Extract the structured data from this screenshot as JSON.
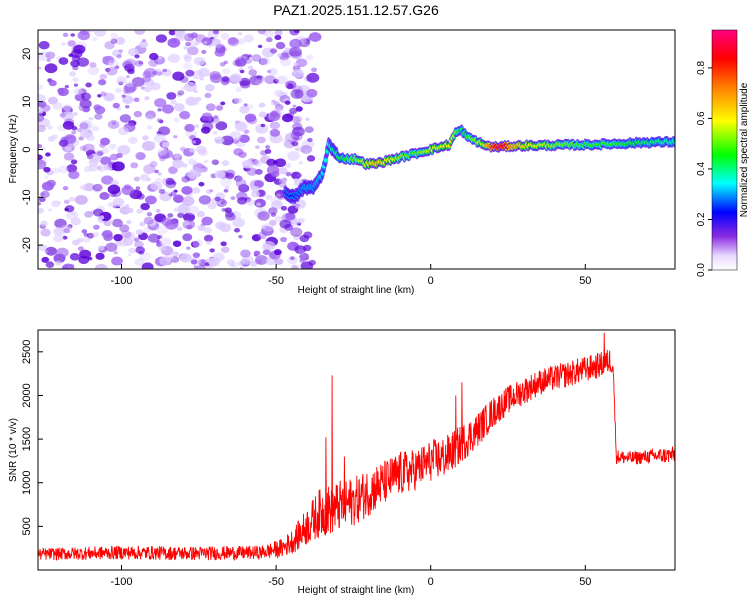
{
  "title": "PAZ1.2025.151.12.57.G26",
  "colors": {
    "noise": "#9b5cf0",
    "noise_dark": "#5a00d8",
    "snr_line": "#ff0000"
  },
  "chart_data": [
    {
      "type": "heatmap",
      "name": "spectrogram",
      "xlabel": "Height of straight line (km)",
      "ylabel": "Frequency (Hz)",
      "xlim": [
        -127,
        79
      ],
      "ylim": [
        -25,
        25
      ],
      "xticks": [
        -100,
        -50,
        0,
        50
      ],
      "xtick_labels": [
        "-100",
        "-50",
        "0",
        "50"
      ],
      "yticks": [
        -20,
        -10,
        0,
        10,
        20
      ],
      "ytick_labels": [
        "-20",
        "-10",
        "0",
        "10",
        "20"
      ],
      "noise_region_x": [
        -127,
        -45
      ],
      "ridge": {
        "x": [
          -47,
          -44,
          -41,
          -38,
          -35,
          -33,
          -30,
          -27,
          -24,
          -21,
          -18,
          -15,
          -12,
          -9,
          -6,
          -3,
          0,
          3,
          6,
          8,
          10,
          12,
          14,
          17,
          20,
          23,
          26,
          30,
          40,
          50,
          60,
          70,
          79
        ],
        "freq": [
          -9,
          -10,
          -8,
          -8,
          -5,
          1,
          -1.5,
          -2,
          -2,
          -3,
          -3,
          -2.5,
          -2,
          -1.5,
          -1,
          -0.5,
          0,
          0.5,
          1,
          3.5,
          4,
          2.5,
          2,
          1,
          0.5,
          0.6,
          0.7,
          0.8,
          0.9,
          1,
          1.2,
          1.5,
          1.6
        ],
        "amplitude": [
          0.2,
          0.25,
          0.3,
          0.3,
          0.35,
          0.4,
          0.45,
          0.5,
          0.55,
          0.6,
          0.7,
          0.65,
          0.6,
          0.55,
          0.5,
          0.55,
          0.6,
          0.6,
          0.65,
          0.55,
          0.45,
          0.5,
          0.55,
          0.6,
          0.85,
          0.95,
          0.75,
          0.65,
          0.55,
          0.5,
          0.5,
          0.45,
          0.4
        ]
      },
      "colorbar": {
        "label": "Normalized spectral amplitude",
        "range": [
          0.0,
          0.95
        ],
        "ticks": [
          0.0,
          0.2,
          0.4,
          0.6,
          0.8
        ],
        "tick_labels": [
          "0.0",
          "0.2",
          "0.4",
          "0.6",
          "0.8"
        ]
      }
    },
    {
      "type": "line",
      "name": "snr",
      "xlabel": "Height of straight line (km)",
      "ylabel": "SNR (10 * v/v)",
      "xlim": [
        -127,
        79
      ],
      "ylim": [
        0,
        2750
      ],
      "xticks": [
        -100,
        -50,
        0,
        50
      ],
      "xtick_labels": [
        "-100",
        "-50",
        "0",
        "50"
      ],
      "yticks": [
        500,
        1000,
        1500,
        2000,
        2500
      ],
      "ytick_labels": [
        "500",
        "1000",
        "1500",
        "2000",
        "2500"
      ],
      "envelope": {
        "x": [
          -127,
          -100,
          -75,
          -55,
          -48,
          -44,
          -40,
          -36,
          -32,
          -28,
          -24,
          -20,
          -15,
          -10,
          -5,
          0,
          5,
          10,
          15,
          20,
          25,
          30,
          35,
          40,
          45,
          50,
          55,
          58,
          59,
          60,
          65,
          70,
          79
        ],
        "mean": [
          180,
          200,
          190,
          200,
          250,
          350,
          500,
          650,
          700,
          750,
          800,
          900,
          1000,
          1100,
          1150,
          1250,
          1300,
          1450,
          1600,
          1800,
          1950,
          2050,
          2150,
          2200,
          2250,
          2300,
          2350,
          2400,
          2350,
          1300,
          1280,
          1300,
          1320
        ],
        "jitter": [
          70,
          80,
          80,
          80,
          110,
          150,
          220,
          280,
          300,
          300,
          280,
          280,
          260,
          260,
          240,
          240,
          240,
          220,
          200,
          180,
          160,
          160,
          150,
          150,
          150,
          150,
          150,
          150,
          100,
          80,
          80,
          80,
          100
        ]
      },
      "spikes": [
        {
          "x": -32,
          "y": 2230
        },
        {
          "x": -34,
          "y": 1520
        },
        {
          "x": -28,
          "y": 1300
        },
        {
          "x": 10,
          "y": 2150
        },
        {
          "x": 8,
          "y": 2000
        },
        {
          "x": 56,
          "y": 2720
        }
      ]
    }
  ]
}
